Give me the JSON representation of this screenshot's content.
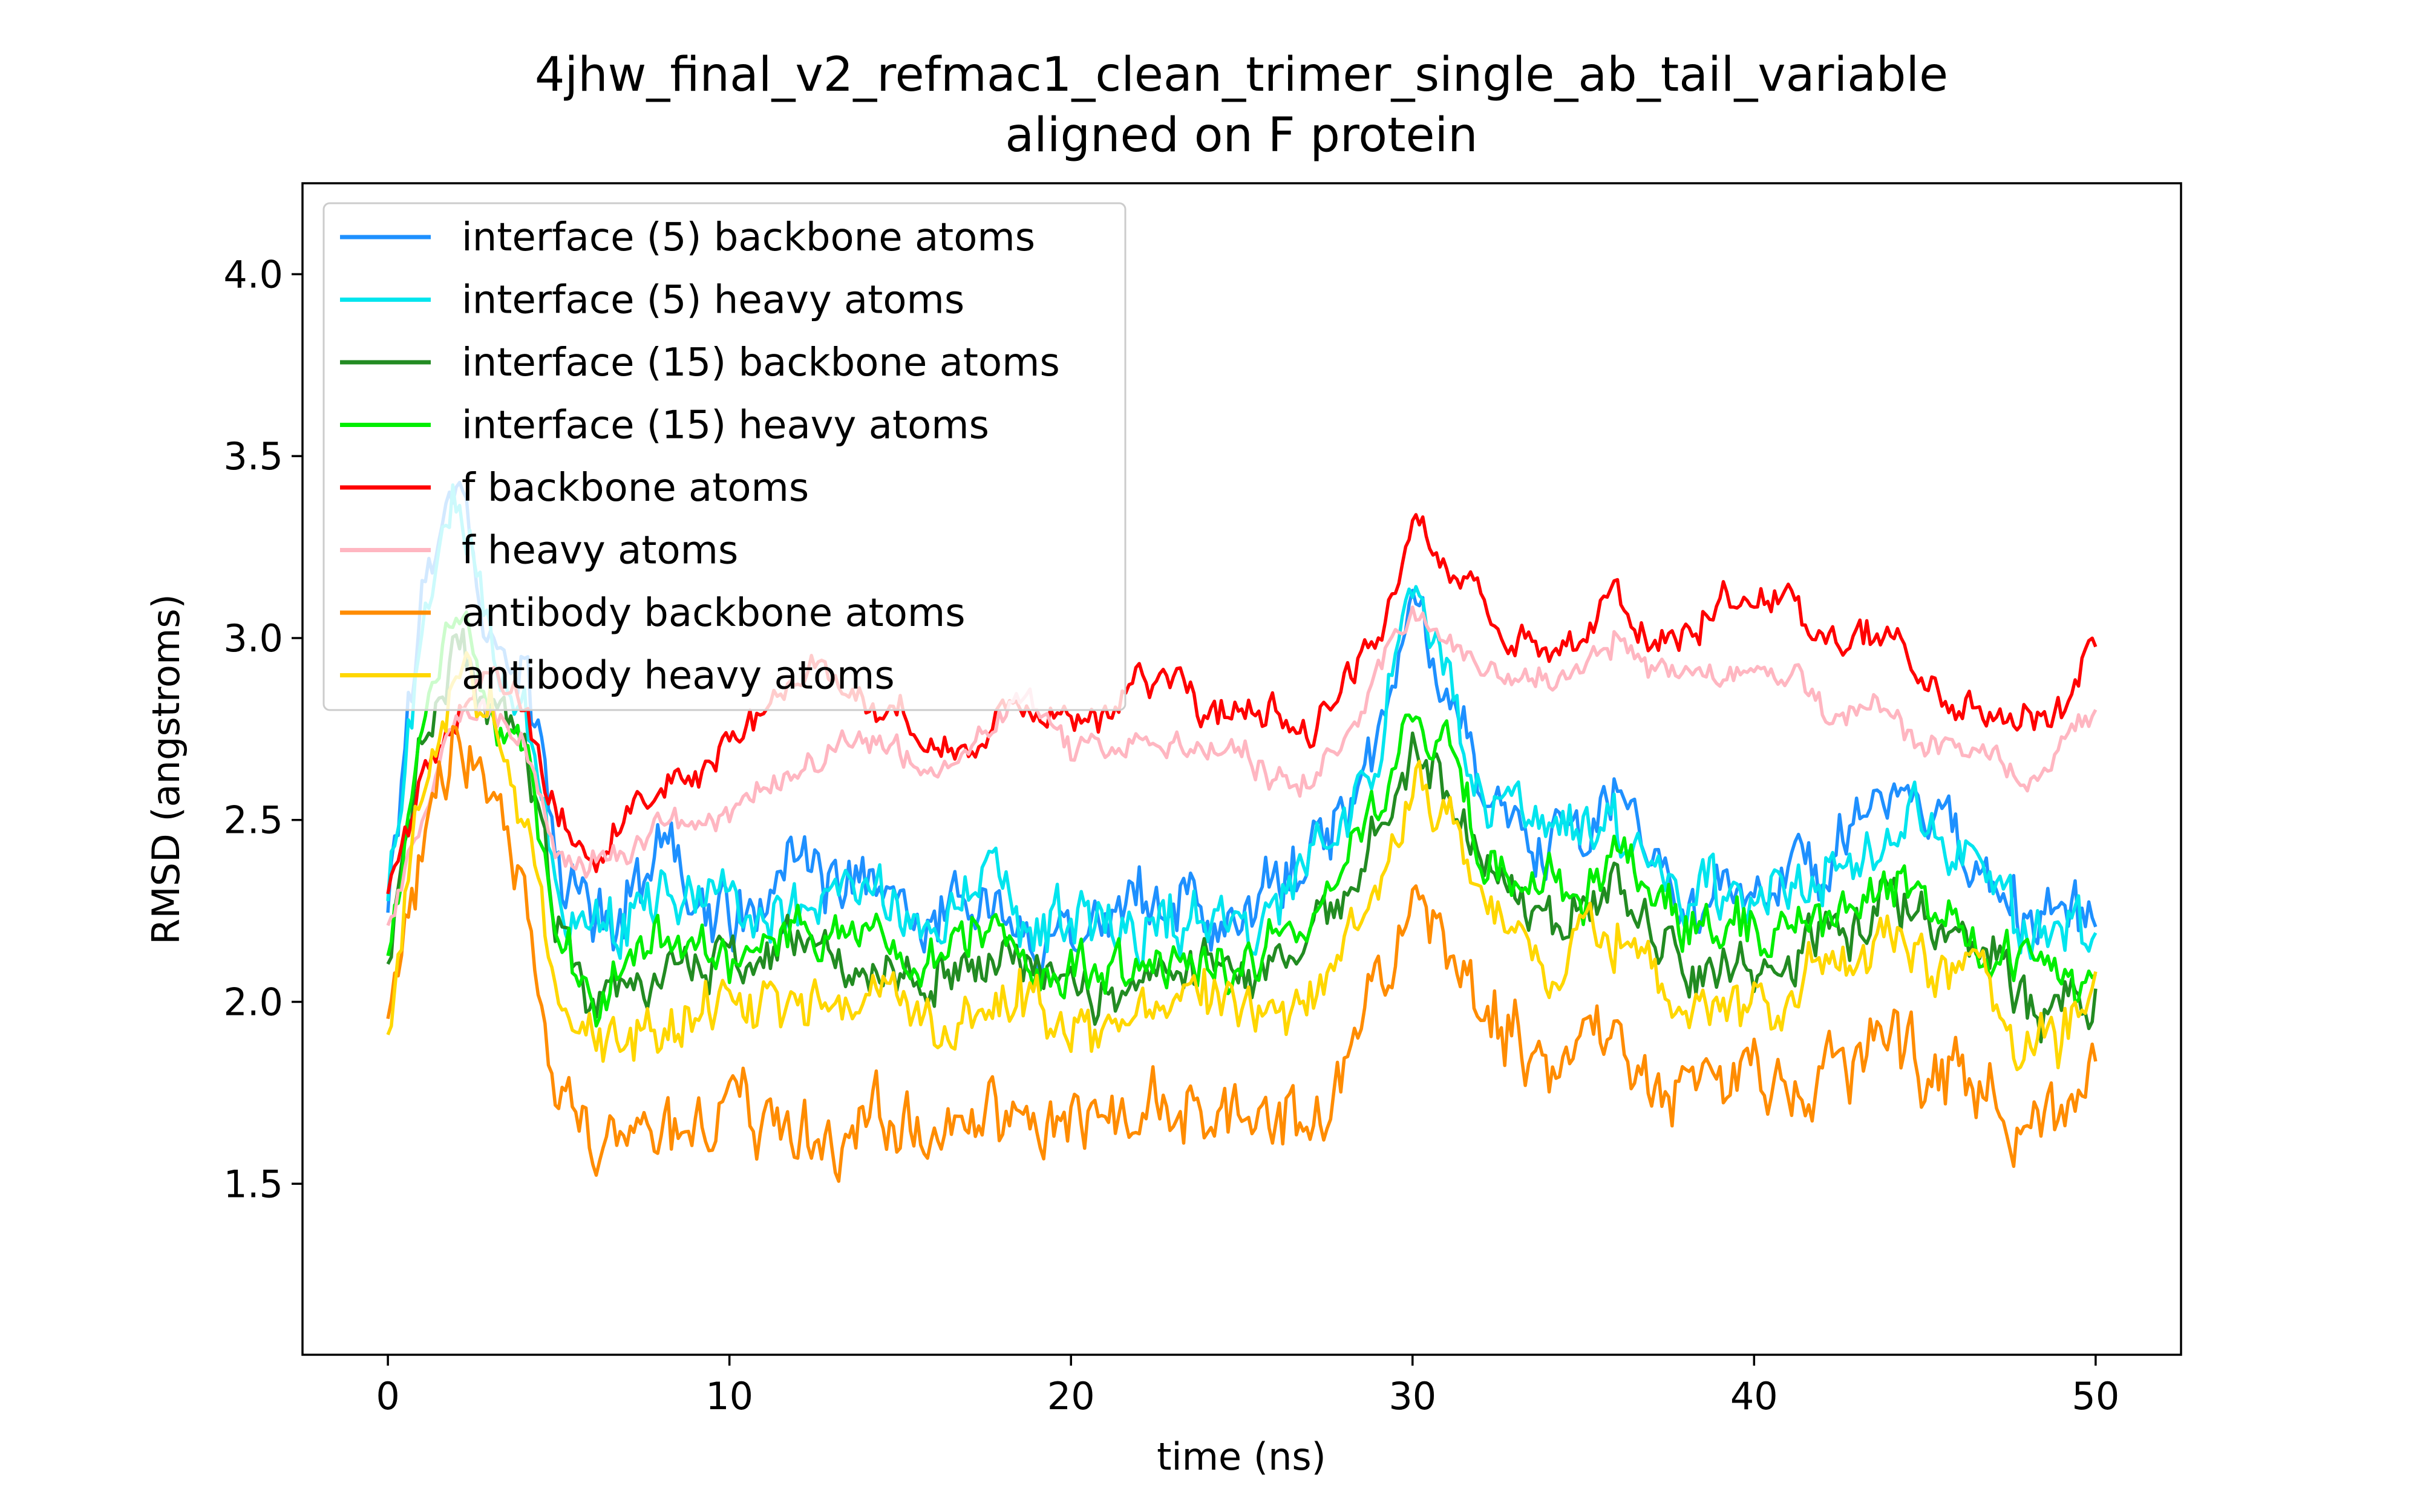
{
  "chart_data": {
    "type": "line",
    "title": "4jhw_final_v2_refmac1_clean_trimer_single_ab_tail_variable",
    "subtitle": "aligned on F protein",
    "xlabel": "time (ns)",
    "ylabel": "RMSD (angstroms)",
    "xlim": [
      -2.5,
      52.5
    ],
    "ylim": [
      1.03,
      4.25
    ],
    "xticks": [
      0,
      10,
      20,
      30,
      40,
      50
    ],
    "yticks": [
      1.5,
      2.0,
      2.5,
      3.0,
      3.5,
      4.0
    ],
    "xtick_labels": [
      "0",
      "10",
      "20",
      "30",
      "40",
      "50"
    ],
    "ytick_labels": [
      "1.5",
      "2.0",
      "2.5",
      "3.0",
      "3.5",
      "4.0"
    ],
    "grid": false,
    "legend_position": "top-left",
    "x": [
      0,
      1,
      2,
      3,
      4,
      5,
      6,
      7,
      8,
      9,
      10,
      11,
      12,
      13,
      14,
      15,
      16,
      17,
      18,
      19,
      20,
      21,
      22,
      23,
      24,
      25,
      26,
      27,
      28,
      29,
      30,
      31,
      32,
      33,
      34,
      35,
      36,
      37,
      38,
      39,
      40,
      41,
      42,
      43,
      44,
      45,
      46,
      47,
      48,
      49,
      50
    ],
    "series": [
      {
        "name": "interface (5) backbone atoms",
        "color": "#1e90ff",
        "noise": 0.12,
        "values": [
          2.3,
          3.1,
          3.5,
          3.0,
          2.9,
          2.4,
          2.2,
          2.3,
          2.4,
          2.3,
          2.2,
          2.3,
          2.4,
          2.3,
          2.3,
          2.3,
          2.2,
          2.3,
          2.3,
          2.2,
          2.2,
          2.2,
          2.3,
          2.3,
          2.2,
          2.2,
          2.3,
          2.4,
          2.5,
          2.7,
          3.1,
          2.9,
          2.6,
          2.5,
          2.4,
          2.5,
          2.6,
          2.4,
          2.3,
          2.3,
          2.3,
          2.4,
          2.4,
          2.5,
          2.6,
          2.5,
          2.4,
          2.3,
          2.2,
          2.3,
          2.2
        ]
      },
      {
        "name": "interface (5) heavy atoms",
        "color": "#00e5ee",
        "noise": 0.11,
        "values": [
          2.3,
          3.0,
          3.4,
          3.0,
          2.8,
          2.3,
          2.2,
          2.2,
          2.3,
          2.3,
          2.2,
          2.3,
          2.3,
          2.3,
          2.3,
          2.2,
          2.2,
          2.3,
          2.3,
          2.2,
          2.2,
          2.2,
          2.2,
          2.2,
          2.2,
          2.2,
          2.3,
          2.4,
          2.5,
          2.7,
          3.1,
          2.9,
          2.6,
          2.5,
          2.4,
          2.5,
          2.5,
          2.4,
          2.3,
          2.3,
          2.3,
          2.3,
          2.4,
          2.4,
          2.5,
          2.5,
          2.4,
          2.3,
          2.2,
          2.2,
          2.2
        ]
      },
      {
        "name": "interface (15) backbone atoms",
        "color": "#228b22",
        "noise": 0.09,
        "values": [
          2.1,
          2.7,
          3.0,
          2.8,
          2.7,
          2.2,
          2.0,
          2.0,
          2.1,
          2.1,
          2.1,
          2.1,
          2.2,
          2.1,
          2.1,
          2.1,
          2.1,
          2.1,
          2.1,
          2.1,
          2.1,
          2.0,
          2.1,
          2.1,
          2.1,
          2.1,
          2.1,
          2.2,
          2.3,
          2.5,
          2.7,
          2.6,
          2.4,
          2.3,
          2.2,
          2.3,
          2.3,
          2.2,
          2.1,
          2.1,
          2.1,
          2.1,
          2.2,
          2.2,
          2.3,
          2.2,
          2.2,
          2.1,
          2.0,
          2.0,
          2.0
        ]
      },
      {
        "name": "interface (15) heavy atoms",
        "color": "#00ee00",
        "noise": 0.09,
        "values": [
          2.1,
          2.8,
          3.1,
          2.8,
          2.7,
          2.2,
          2.0,
          2.1,
          2.2,
          2.2,
          2.1,
          2.2,
          2.2,
          2.2,
          2.2,
          2.1,
          2.1,
          2.2,
          2.2,
          2.1,
          2.1,
          2.1,
          2.1,
          2.1,
          2.1,
          2.1,
          2.2,
          2.2,
          2.4,
          2.5,
          2.8,
          2.7,
          2.4,
          2.3,
          2.3,
          2.3,
          2.4,
          2.3,
          2.2,
          2.2,
          2.2,
          2.2,
          2.2,
          2.3,
          2.3,
          2.3,
          2.2,
          2.1,
          2.1,
          2.1,
          2.0
        ]
      },
      {
        "name": "f backbone atoms",
        "color": "#ff0000",
        "noise": 0.06,
        "values": [
          2.3,
          2.6,
          2.8,
          2.9,
          2.8,
          2.5,
          2.4,
          2.5,
          2.6,
          2.6,
          2.7,
          2.8,
          2.9,
          2.9,
          2.8,
          2.8,
          2.7,
          2.7,
          2.8,
          2.8,
          2.8,
          2.8,
          2.9,
          2.9,
          2.8,
          2.8,
          2.8,
          2.7,
          2.9,
          3.0,
          3.3,
          3.2,
          3.1,
          3.0,
          3.0,
          3.0,
          3.1,
          3.0,
          3.0,
          3.1,
          3.1,
          3.1,
          3.0,
          3.0,
          3.0,
          2.9,
          2.8,
          2.8,
          2.8,
          2.8,
          3.0
        ]
      },
      {
        "name": "f heavy atoms",
        "color": "#ffb6c1",
        "noise": 0.05,
        "values": [
          2.2,
          2.5,
          2.8,
          2.8,
          2.7,
          2.4,
          2.4,
          2.4,
          2.5,
          2.5,
          2.5,
          2.6,
          2.6,
          2.7,
          2.7,
          2.7,
          2.6,
          2.7,
          2.8,
          2.8,
          2.7,
          2.7,
          2.7,
          2.7,
          2.7,
          2.7,
          2.6,
          2.6,
          2.7,
          2.9,
          3.1,
          3.0,
          2.9,
          2.9,
          2.9,
          2.9,
          3.0,
          2.9,
          2.9,
          2.9,
          2.9,
          2.9,
          2.8,
          2.8,
          2.8,
          2.7,
          2.7,
          2.7,
          2.6,
          2.7,
          2.8
        ]
      },
      {
        "name": "antibody backbone atoms",
        "color": "#ff8c00",
        "noise": 0.12,
        "values": [
          1.9,
          2.4,
          2.7,
          2.6,
          2.3,
          1.7,
          1.6,
          1.6,
          1.6,
          1.6,
          1.7,
          1.7,
          1.7,
          1.6,
          1.7,
          1.7,
          1.6,
          1.7,
          1.7,
          1.7,
          1.7,
          1.7,
          1.7,
          1.7,
          1.7,
          1.7,
          1.7,
          1.7,
          1.8,
          2.0,
          2.3,
          2.2,
          2.0,
          1.9,
          1.8,
          1.9,
          1.9,
          1.8,
          1.8,
          1.8,
          1.8,
          1.8,
          1.8,
          1.8,
          1.9,
          1.8,
          1.8,
          1.7,
          1.7,
          1.7,
          1.8
        ]
      },
      {
        "name": "antibody heavy atoms",
        "color": "#ffd700",
        "noise": 0.1,
        "values": [
          1.9,
          2.6,
          2.9,
          2.8,
          2.5,
          2.0,
          1.9,
          1.9,
          1.9,
          2.0,
          2.0,
          2.0,
          2.0,
          2.0,
          2.0,
          2.0,
          1.9,
          2.0,
          2.0,
          2.0,
          1.9,
          1.9,
          2.0,
          2.0,
          2.0,
          2.0,
          2.0,
          2.0,
          2.1,
          2.3,
          2.6,
          2.5,
          2.3,
          2.2,
          2.1,
          2.2,
          2.2,
          2.1,
          2.0,
          2.0,
          2.0,
          2.0,
          2.1,
          2.1,
          2.2,
          2.1,
          2.1,
          2.0,
          1.9,
          1.9,
          2.0
        ]
      }
    ]
  }
}
